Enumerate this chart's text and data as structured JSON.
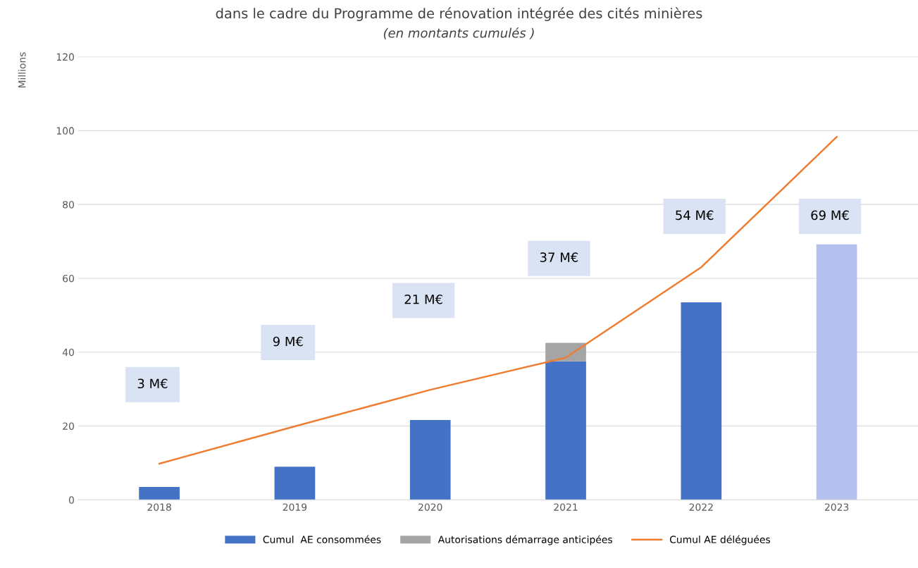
{
  "chart_data": {
    "type": "bar",
    "title": "dans le cadre du Programme de rénovation intégrée des cités minières",
    "subtitle": "(en montants cumulés )",
    "ylabel": "Millions",
    "categories": [
      "2018",
      "2019",
      "2020",
      "2021",
      "2022",
      "2023"
    ],
    "stacked": true,
    "series": [
      {
        "name": "Cumul  AE consommées",
        "color": "#4472c4",
        "colors": [
          "#4472c4",
          "#4472c4",
          "#4472c4",
          "#4472c4",
          "#4472c4",
          "#b4c1ee"
        ],
        "values": [
          3.5,
          9,
          21.6,
          37.5,
          53.5,
          69.2
        ]
      },
      {
        "name": "Autorisations démarrage anticipées",
        "color": "#a5a5a5",
        "values": [
          null,
          null,
          null,
          5,
          null,
          null
        ]
      },
      {
        "name": "Cumul AE déléguées",
        "type": "line",
        "color": "#ed7d31",
        "values": [
          9.8,
          19.9,
          29.8,
          38.5,
          63,
          98.3
        ]
      }
    ],
    "annotations": [
      "3 M€",
      "9 M€",
      "21 M€",
      "37 M€",
      "54 M€",
      "69 M€"
    ],
    "ylim": [
      0,
      120
    ],
    "yticks": [
      0,
      20,
      40,
      60,
      80,
      100,
      120
    ],
    "grid": "y",
    "legend": "bottom",
    "marker": "none",
    "line_style": "solid"
  }
}
